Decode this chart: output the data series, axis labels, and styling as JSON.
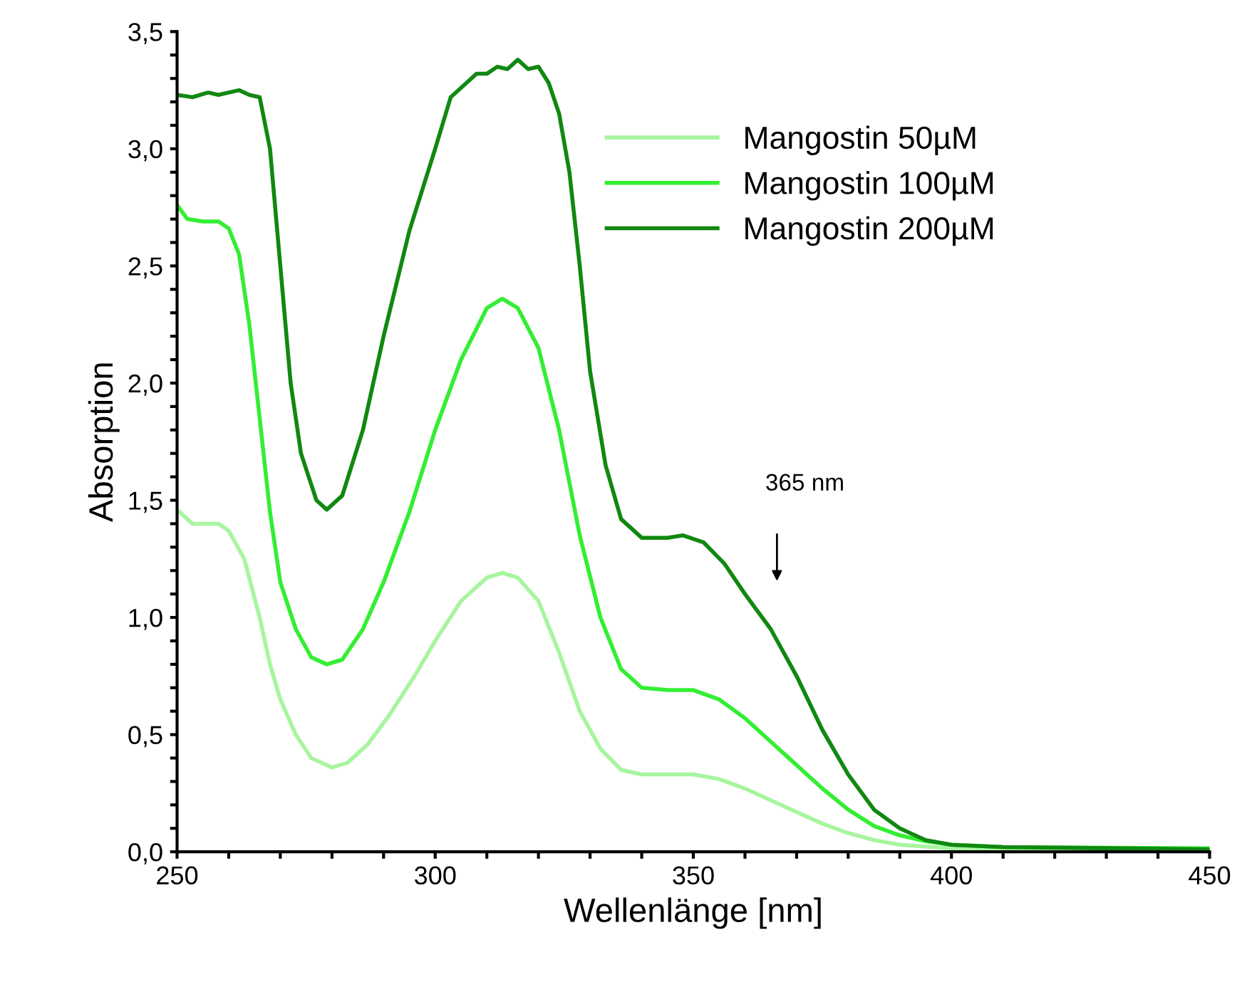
{
  "chart_data": {
    "type": "line",
    "xlabel": "Wellenlänge [nm]",
    "ylabel": "Absorption",
    "xlim": [
      250,
      450
    ],
    "ylim": [
      0,
      3.5
    ],
    "xticks": [
      250,
      {
        "value": 260,
        "label": null
      },
      {
        "value": 270,
        "label": null
      },
      {
        "value": 280,
        "label": null
      },
      {
        "value": 290,
        "label": null
      },
      300,
      {
        "value": 310,
        "label": null
      },
      {
        "value": 320,
        "label": null
      },
      {
        "value": 330,
        "label": null
      },
      {
        "value": 340,
        "label": null
      },
      350,
      {
        "value": 360,
        "label": null
      },
      {
        "value": 370,
        "label": null
      },
      {
        "value": 380,
        "label": null
      },
      {
        "value": 390,
        "label": null
      },
      400,
      {
        "value": 410,
        "label": null
      },
      {
        "value": 420,
        "label": null
      },
      {
        "value": 430,
        "label": null
      },
      {
        "value": 440,
        "label": null
      },
      450
    ],
    "yticks": [
      {
        "value": 0,
        "label": "0,0"
      },
      {
        "value": 0.1,
        "label": null
      },
      {
        "value": 0.2,
        "label": null
      },
      {
        "value": 0.3,
        "label": null
      },
      {
        "value": 0.4,
        "label": null
      },
      {
        "value": 0.5,
        "label": "0,5"
      },
      {
        "value": 0.6,
        "label": null
      },
      {
        "value": 0.7,
        "label": null
      },
      {
        "value": 0.8,
        "label": null
      },
      {
        "value": 0.9,
        "label": null
      },
      {
        "value": 1.0,
        "label": "1,0"
      },
      {
        "value": 1.1,
        "label": null
      },
      {
        "value": 1.2,
        "label": null
      },
      {
        "value": 1.3,
        "label": null
      },
      {
        "value": 1.4,
        "label": null
      },
      {
        "value": 1.5,
        "label": "1,5"
      },
      {
        "value": 1.6,
        "label": null
      },
      {
        "value": 1.7,
        "label": null
      },
      {
        "value": 1.8,
        "label": null
      },
      {
        "value": 1.9,
        "label": null
      },
      {
        "value": 2.0,
        "label": "2,0"
      },
      {
        "value": 2.1,
        "label": null
      },
      {
        "value": 2.2,
        "label": null
      },
      {
        "value": 2.3,
        "label": null
      },
      {
        "value": 2.4,
        "label": null
      },
      {
        "value": 2.5,
        "label": "2,5"
      },
      {
        "value": 2.6,
        "label": null
      },
      {
        "value": 2.7,
        "label": null
      },
      {
        "value": 2.8,
        "label": null
      },
      {
        "value": 2.9,
        "label": null
      },
      {
        "value": 3.0,
        "label": "3,0"
      },
      {
        "value": 3.1,
        "label": null
      },
      {
        "value": 3.2,
        "label": null
      },
      {
        "value": 3.3,
        "label": null
      },
      {
        "value": 3.4,
        "label": null
      },
      {
        "value": 3.5,
        "label": "3,5"
      }
    ],
    "grid": false,
    "legend": "top right",
    "marker": "none",
    "line_style": "solid",
    "annotations": [
      "365 nm"
    ],
    "series": [
      {
        "name": "Mangostin 50µM",
        "color": "#a8f5a0",
        "x": [
          250,
          253,
          258,
          260,
          263,
          266,
          268,
          270,
          273,
          276,
          280,
          283,
          287,
          291,
          296,
          300,
          305,
          310,
          313,
          316,
          320,
          324,
          328,
          332,
          336,
          340,
          345,
          350,
          355,
          360,
          365,
          370,
          375,
          380,
          385,
          390,
          400,
          450
        ],
        "values": [
          1.46,
          1.4,
          1.4,
          1.37,
          1.25,
          1.0,
          0.8,
          0.65,
          0.5,
          0.4,
          0.36,
          0.38,
          0.46,
          0.58,
          0.75,
          0.9,
          1.07,
          1.17,
          1.19,
          1.17,
          1.07,
          0.85,
          0.6,
          0.44,
          0.35,
          0.33,
          0.33,
          0.33,
          0.31,
          0.27,
          0.22,
          0.17,
          0.12,
          0.08,
          0.05,
          0.03,
          0.015,
          0.005
        ]
      },
      {
        "name": "Mangostin 100µM",
        "color": "#33ee33",
        "x": [
          250,
          252,
          255,
          258,
          260,
          262,
          264,
          266,
          268,
          270,
          273,
          276,
          279,
          282,
          286,
          290,
          295,
          300,
          305,
          310,
          313,
          316,
          320,
          324,
          328,
          332,
          336,
          340,
          345,
          350,
          355,
          360,
          365,
          370,
          375,
          380,
          385,
          390,
          395,
          400,
          410,
          450
        ],
        "values": [
          2.76,
          2.7,
          2.69,
          2.69,
          2.66,
          2.55,
          2.25,
          1.85,
          1.45,
          1.15,
          0.95,
          0.83,
          0.8,
          0.82,
          0.95,
          1.15,
          1.45,
          1.8,
          2.1,
          2.32,
          2.36,
          2.32,
          2.15,
          1.8,
          1.35,
          1.0,
          0.78,
          0.7,
          0.69,
          0.69,
          0.65,
          0.57,
          0.47,
          0.37,
          0.27,
          0.18,
          0.11,
          0.07,
          0.045,
          0.03,
          0.02,
          0.015
        ]
      },
      {
        "name": "Mangostin 200µM",
        "color": "#118811",
        "x": [
          250,
          253,
          256,
          258,
          262,
          264,
          266,
          268,
          270,
          272,
          274,
          277,
          279,
          282,
          286,
          290,
          295,
          300,
          303,
          306,
          308,
          310,
          312,
          314,
          316,
          318,
          320,
          322,
          324,
          326,
          328,
          330,
          333,
          336,
          340,
          345,
          348,
          352,
          356,
          360,
          365,
          370,
          375,
          380,
          385,
          390,
          395,
          400,
          410,
          450
        ],
        "values": [
          3.23,
          3.22,
          3.24,
          3.23,
          3.25,
          3.23,
          3.22,
          3.0,
          2.5,
          2.0,
          1.7,
          1.5,
          1.46,
          1.52,
          1.8,
          2.2,
          2.65,
          3.0,
          3.22,
          3.28,
          3.32,
          3.32,
          3.35,
          3.34,
          3.38,
          3.34,
          3.35,
          3.28,
          3.15,
          2.9,
          2.5,
          2.05,
          1.65,
          1.42,
          1.34,
          1.34,
          1.35,
          1.32,
          1.23,
          1.1,
          0.95,
          0.75,
          0.52,
          0.33,
          0.18,
          0.1,
          0.05,
          0.03,
          0.02,
          0.01
        ]
      }
    ]
  }
}
